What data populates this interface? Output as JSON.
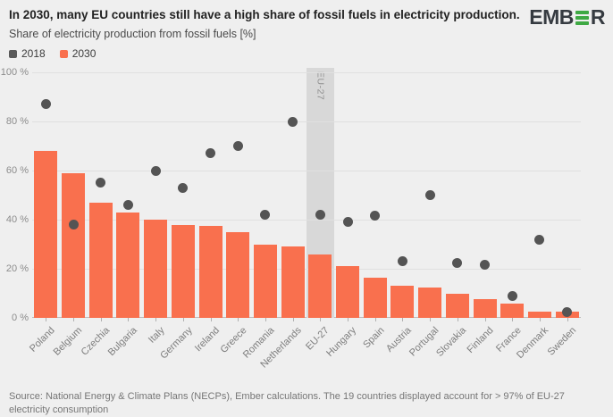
{
  "header": {
    "title": "In 2030, many EU countries still have a high share of fossil fuels in electricity production.",
    "subtitle": "Share of electricity production from fossil fuels [%]",
    "logo": {
      "left": "EMB",
      "right": "R"
    }
  },
  "legend": {
    "items": [
      {
        "label": "2018",
        "color": "#595959"
      },
      {
        "label": "2030",
        "color": "#f9704e"
      }
    ]
  },
  "chart_data": {
    "type": "bar",
    "title": "In 2030, many EU countries still have a high share of fossil fuels in electricity production.",
    "subtitle": "Share of electricity production from fossil fuels [%]",
    "categories": [
      "Poland",
      "Belgium",
      "Czechia",
      "Bulgaria",
      "Italy",
      "Germany",
      "Ireland",
      "Greece",
      "Romania",
      "Netherlands",
      "EU-27",
      "Hungary",
      "Spain",
      "Austria",
      "Portugal",
      "Slovakia",
      "Finland",
      "France",
      "Denmark",
      "Sweden"
    ],
    "series": [
      {
        "name": "2018",
        "type": "scatter",
        "color": "#545454",
        "values": [
          87,
          38,
          55,
          46,
          60,
          53,
          67,
          70,
          42,
          80,
          42,
          39,
          41.5,
          23,
          50,
          22.5,
          21.5,
          9,
          32,
          2.2
        ]
      },
      {
        "name": "2030",
        "type": "bar",
        "color": "#f9704e",
        "values": [
          68,
          59,
          47,
          43,
          40,
          38,
          37.5,
          35,
          30,
          29,
          26,
          21,
          16.5,
          13,
          12.5,
          10,
          7.5,
          6,
          2.5,
          2.5
        ]
      }
    ],
    "ylim": [
      0,
      100
    ],
    "yticks": [
      0,
      20,
      40,
      60,
      80,
      100
    ],
    "ytick_suffix": " %",
    "grid": true,
    "legend_position": "top-left",
    "highlight": {
      "category": "EU-27",
      "band_color": "#d8d8d8",
      "label_color": "#8f8f8f"
    }
  },
  "footer": {
    "source": "Source: National Energy & Climate Plans (NECPs), Ember calculations. The 19 countries displayed account for > 97% of EU-27 electricity consumption"
  },
  "colors": {
    "background": "#efefef",
    "gridline": "#e0e0e0",
    "axis_line": "#bdbdbd",
    "ytick_text": "#8c8c8c",
    "xtick_text": "#7d7d7d",
    "logo_dark": "#363b41",
    "logo_green": "#3fa944"
  }
}
